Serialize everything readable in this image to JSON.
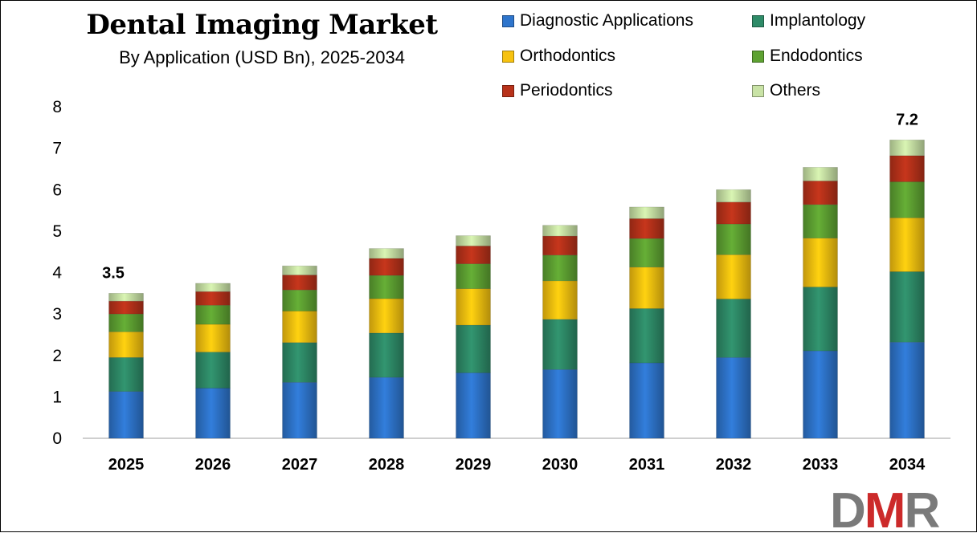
{
  "header": {
    "title": "Dental Imaging Market",
    "subtitle": "By Application (USD Bn), 2025-2034"
  },
  "logo": {
    "text": "DMR",
    "letters": [
      "D",
      "M",
      "R"
    ],
    "colors": [
      "#7a7a7a",
      "#cc2a2a",
      "#7a7a7a"
    ]
  },
  "chart_data": {
    "type": "bar",
    "stacked": true,
    "categories": [
      "2025",
      "2026",
      "2027",
      "2028",
      "2029",
      "2030",
      "2031",
      "2032",
      "2033",
      "2034"
    ],
    "series": [
      {
        "name": "Diagnostic Applications",
        "color": "#2e75cc",
        "values": [
          1.13,
          1.21,
          1.35,
          1.47,
          1.58,
          1.66,
          1.82,
          1.95,
          2.11,
          2.32
        ]
      },
      {
        "name": "Implantology",
        "color": "#2e8b68",
        "values": [
          0.82,
          0.87,
          0.96,
          1.07,
          1.15,
          1.21,
          1.31,
          1.41,
          1.54,
          1.7
        ]
      },
      {
        "name": "Orthodontics",
        "color": "#f7c20f",
        "values": [
          0.62,
          0.67,
          0.76,
          0.83,
          0.88,
          0.93,
          1.0,
          1.07,
          1.18,
          1.3
        ]
      },
      {
        "name": "Endodontics",
        "color": "#5ea232",
        "values": [
          0.43,
          0.46,
          0.51,
          0.56,
          0.6,
          0.62,
          0.69,
          0.74,
          0.81,
          0.87
        ]
      },
      {
        "name": "Periodontics",
        "color": "#b8321a",
        "values": [
          0.31,
          0.33,
          0.36,
          0.41,
          0.43,
          0.46,
          0.48,
          0.53,
          0.57,
          0.63
        ]
      },
      {
        "name": "Others",
        "color": "#c9e3a6",
        "values": [
          0.19,
          0.2,
          0.22,
          0.24,
          0.25,
          0.26,
          0.28,
          0.3,
          0.33,
          0.38
        ]
      }
    ],
    "totals_shown": [
      {
        "category": "2025",
        "label": "3.5"
      },
      {
        "category": "2034",
        "label": "7.2"
      }
    ],
    "ylim": [
      0,
      8
    ],
    "yticks": [
      "0",
      "1",
      "2",
      "3",
      "4",
      "5",
      "6",
      "7",
      "8"
    ],
    "grid": false,
    "legend_position": "top-right"
  }
}
